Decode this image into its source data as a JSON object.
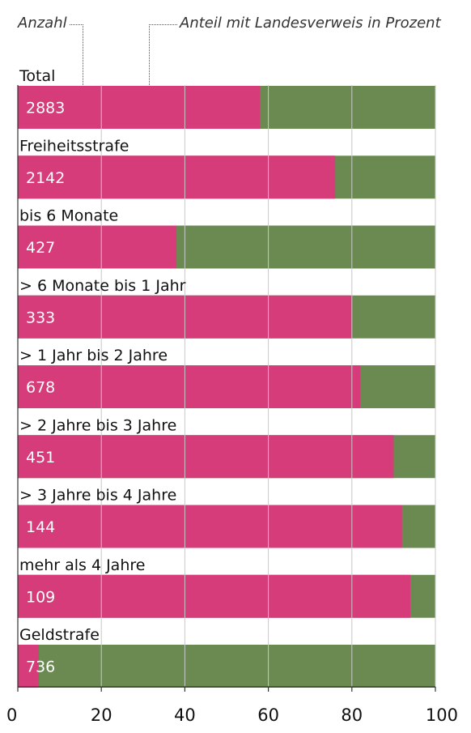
{
  "legend": {
    "count_label": "Anzahl",
    "share_label": "Anteil mit Landesverweis in Prozent"
  },
  "colors": {
    "share": "#d63c7a",
    "rest": "#6a8a52",
    "grid": "#c8c8c8",
    "axis": "#333333"
  },
  "chart_data": {
    "type": "bar",
    "orientation": "horizontal",
    "stacked": true,
    "categories": [
      "Total",
      "Freiheitsstrafe",
      "bis 6 Monate",
      "> 6 Monate bis 1 Jahr",
      "> 1 Jahr bis 2 Jahre",
      "> 2 Jahre bis 3 Jahre",
      "> 3 Jahre bis 4 Jahre",
      "mehr als 4 Jahre",
      "Geldstrafe"
    ],
    "counts": [
      "2883",
      "2142",
      "427",
      "333",
      "678",
      "451",
      "144",
      "109",
      "736"
    ],
    "series": [
      {
        "name": "Anteil mit Landesverweis in Prozent",
        "values": [
          58,
          76,
          38,
          80,
          82,
          90,
          92,
          94,
          5
        ]
      }
    ],
    "xlim": [
      0,
      100
    ],
    "xticks": [
      "0",
      "20",
      "40",
      "60",
      "80",
      "100"
    ],
    "grid": true
  }
}
